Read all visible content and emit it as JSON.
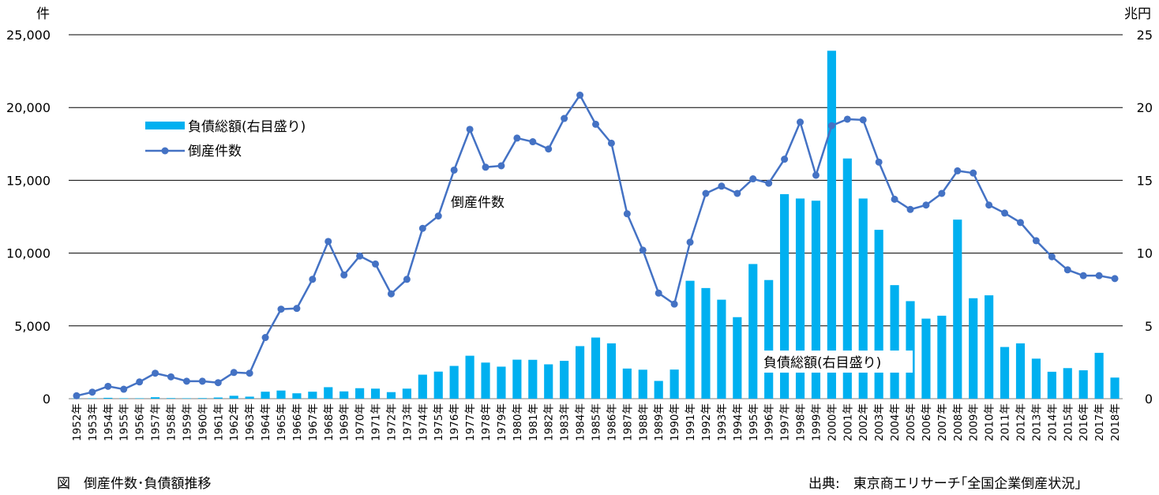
{
  "chart_data": {
    "type": "bar+line",
    "left_axis_unit": "件",
    "right_axis_unit": "兆円",
    "left_ylim": [
      0,
      25000
    ],
    "right_ylim": [
      0,
      25
    ],
    "left_ticks": [
      "0",
      "5,000",
      "10,000",
      "15,000",
      "20,000",
      "25,000"
    ],
    "right_ticks": [
      "0",
      "5",
      "10",
      "15",
      "20",
      "25"
    ],
    "grid": true,
    "legend_position": "upper-left",
    "categories": [
      "1952年",
      "1953年",
      "1954年",
      "1955年",
      "1956年",
      "1957年",
      "1958年",
      "1959年",
      "1960年",
      "1961年",
      "1962年",
      "1963年",
      "1964年",
      "1965年",
      "1966年",
      "1967年",
      "1968年",
      "1969年",
      "1970年",
      "1971年",
      "1972年",
      "1973年",
      "1974年",
      "1975年",
      "1976年",
      "1977年",
      "1978年",
      "1979年",
      "1980年",
      "1981年",
      "1982年",
      "1983年",
      "1984年",
      "1985年",
      "1986年",
      "1987年",
      "1988年",
      "1989年",
      "1990年",
      "1991年",
      "1992年",
      "1993年",
      "1994年",
      "1995年",
      "1996年",
      "1997年",
      "1998年",
      "1999年",
      "2000年",
      "2001年",
      "2002年",
      "2003年",
      "2004年",
      "2005年",
      "2006年",
      "2007年",
      "2008年",
      "2009年",
      "2010年",
      "2011年",
      "2012年",
      "2013年",
      "2014年",
      "2015年",
      "2016年",
      "2017年",
      "2018年"
    ],
    "series": [
      {
        "name": "負債総額(右目盛り)",
        "type": "bar",
        "axis": "right",
        "color": "#00B0F0",
        "values": [
          0.02,
          0.03,
          0.06,
          0.03,
          0.03,
          0.1,
          0.04,
          0.03,
          0.04,
          0.08,
          0.2,
          0.14,
          0.48,
          0.56,
          0.37,
          0.48,
          0.79,
          0.5,
          0.72,
          0.69,
          0.45,
          0.69,
          1.65,
          1.86,
          2.25,
          2.95,
          2.48,
          2.2,
          2.68,
          2.67,
          2.36,
          2.6,
          3.61,
          4.2,
          3.8,
          2.07,
          1.99,
          1.22,
          2.0,
          8.1,
          7.6,
          6.8,
          5.6,
          9.25,
          8.15,
          14.05,
          13.75,
          13.6,
          23.9,
          16.5,
          13.75,
          11.6,
          7.8,
          6.7,
          5.5,
          5.7,
          12.3,
          6.9,
          7.1,
          3.55,
          3.8,
          2.75,
          1.85,
          2.1,
          1.95,
          3.15,
          1.45
        ],
        "annotation": "負債総額(右目盛り)"
      },
      {
        "name": "倒産件数",
        "type": "line",
        "axis": "left",
        "color": "#4472C4",
        "values": [
          200,
          450,
          850,
          650,
          1150,
          1750,
          1500,
          1200,
          1200,
          1100,
          1800,
          1750,
          4200,
          6150,
          6200,
          8200,
          10800,
          8500,
          9800,
          9250,
          7200,
          8200,
          11700,
          12550,
          15700,
          18500,
          15900,
          16000,
          17900,
          17650,
          17150,
          19250,
          20850,
          18850,
          17550,
          12700,
          10200,
          7250,
          6500,
          10750,
          14100,
          14600,
          14100,
          15100,
          14800,
          16450,
          19000,
          15350,
          18750,
          19200,
          19150,
          16250,
          13700,
          13000,
          13300,
          14100,
          15650,
          15500,
          13300,
          12750,
          12100,
          10850,
          9750,
          8850,
          8450,
          8450,
          8250
        ],
        "annotation": "倒産件数"
      }
    ]
  },
  "caption": "図　倒産件数･負債額推移",
  "source": "出典:　東京商エリサーチ｢全国企業倒産状況｣"
}
